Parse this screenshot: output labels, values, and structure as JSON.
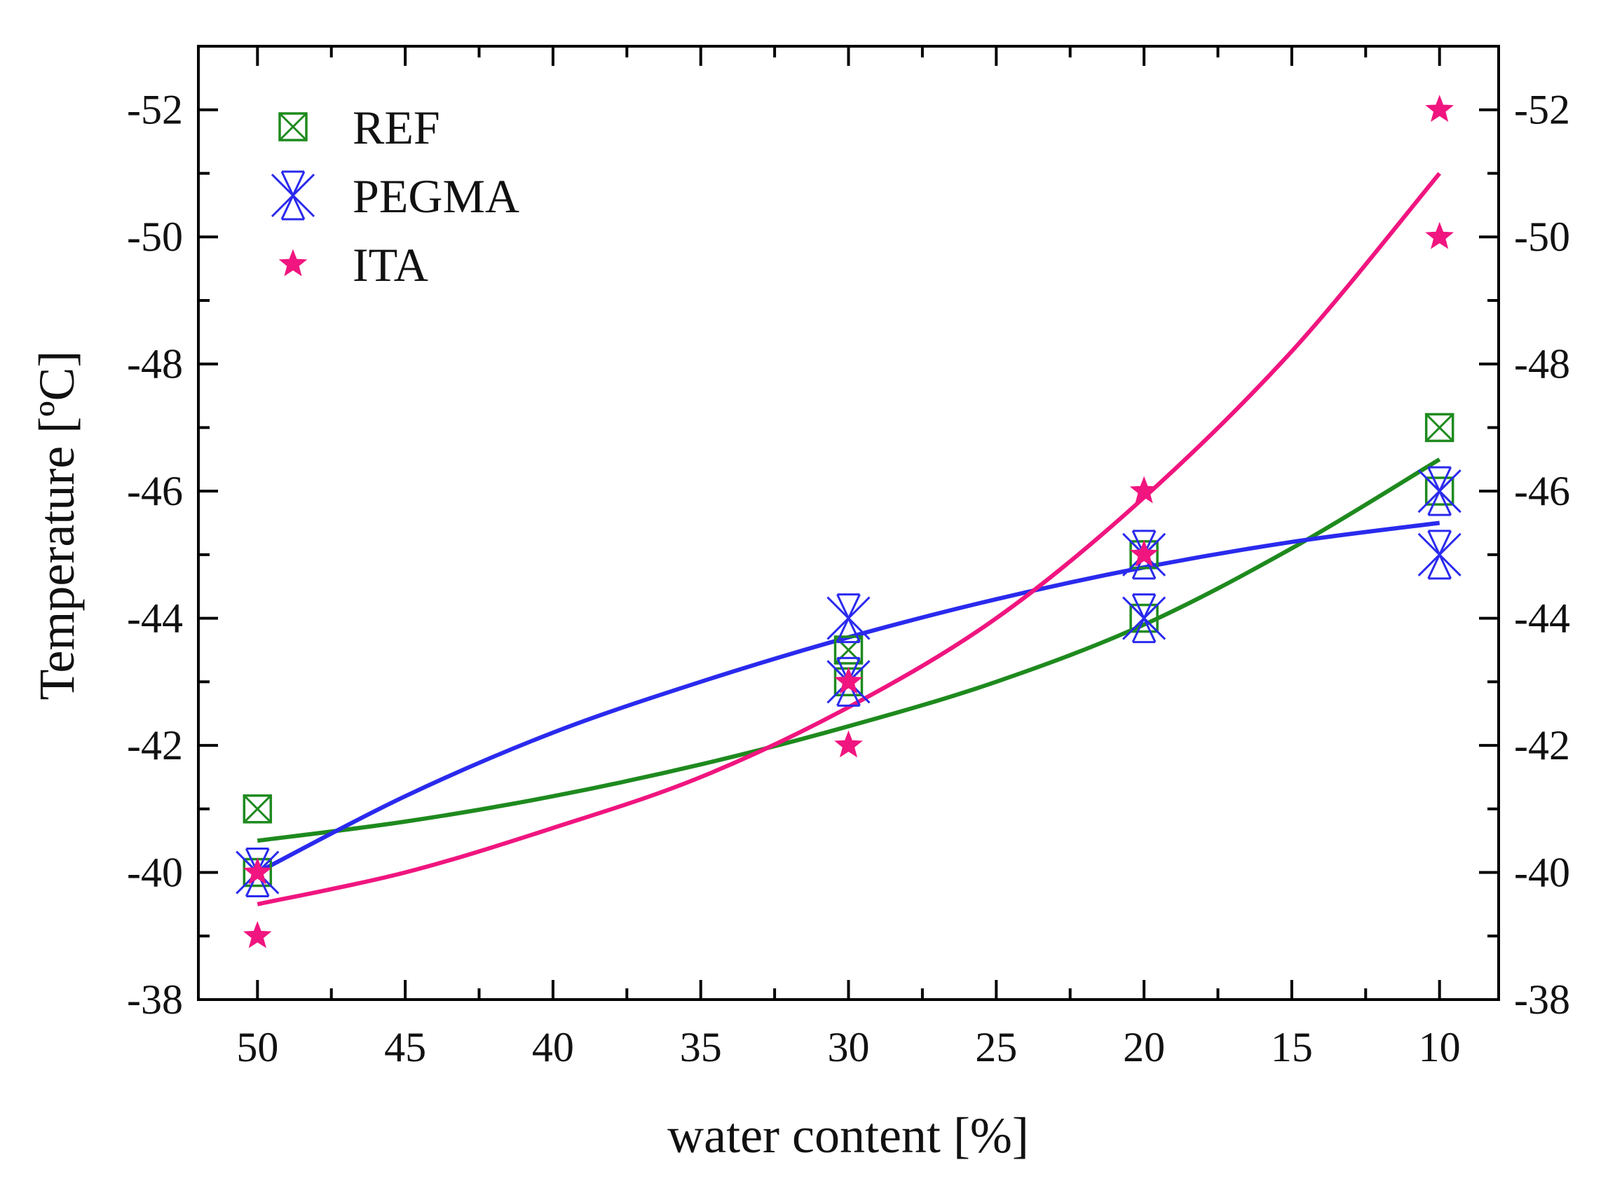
{
  "chart_data": {
    "type": "scatter",
    "title": "",
    "xlabel": "water content [%]",
    "ylabel": "Temperature [ºC]",
    "xlim": [
      52,
      8
    ],
    "ylim": [
      -38,
      -53
    ],
    "x_ticks": [
      50,
      45,
      40,
      35,
      30,
      25,
      20,
      15,
      10
    ],
    "x_tick_labels": [
      "50",
      "45",
      "40",
      "35",
      "30",
      "25",
      "20",
      "15",
      "10"
    ],
    "y_ticks": [
      -38,
      -40,
      -42,
      -44,
      -46,
      -48,
      -50,
      -52
    ],
    "y_tick_labels": [
      "-38",
      "-40",
      "-42",
      "-44",
      "-46",
      "-48",
      "-50",
      "-52"
    ],
    "right_axis_mirrored": true,
    "legend_position": "top-left",
    "series": [
      {
        "name": "REF",
        "color": "#1e8a1e",
        "marker": "square-x-icon",
        "points": [
          {
            "x": 50,
            "y": -41
          },
          {
            "x": 50,
            "y": -40
          },
          {
            "x": 30,
            "y": -43.5
          },
          {
            "x": 30,
            "y": -43
          },
          {
            "x": 20,
            "y": -45
          },
          {
            "x": 20,
            "y": -44
          },
          {
            "x": 10,
            "y": -47
          },
          {
            "x": 10,
            "y": -46
          }
        ],
        "fit": [
          {
            "x": 50,
            "y": -40.5
          },
          {
            "x": 45,
            "y": -40.8
          },
          {
            "x": 40,
            "y": -41.2
          },
          {
            "x": 35,
            "y": -41.7
          },
          {
            "x": 30,
            "y": -42.3
          },
          {
            "x": 25,
            "y": -43.0
          },
          {
            "x": 20,
            "y": -43.9
          },
          {
            "x": 15,
            "y": -45.1
          },
          {
            "x": 10,
            "y": -46.5
          }
        ]
      },
      {
        "name": "PEGMA",
        "color": "#2a2aee",
        "marker": "asterisk-x-icon",
        "points": [
          {
            "x": 50,
            "y": -40
          },
          {
            "x": 30,
            "y": -44
          },
          {
            "x": 30,
            "y": -43
          },
          {
            "x": 20,
            "y": -45
          },
          {
            "x": 20,
            "y": -44
          },
          {
            "x": 10,
            "y": -46
          },
          {
            "x": 10,
            "y": -45
          }
        ],
        "fit": [
          {
            "x": 50,
            "y": -40.0
          },
          {
            "x": 45,
            "y": -41.2
          },
          {
            "x": 40,
            "y": -42.2
          },
          {
            "x": 35,
            "y": -43.0
          },
          {
            "x": 30,
            "y": -43.7
          },
          {
            "x": 25,
            "y": -44.3
          },
          {
            "x": 20,
            "y": -44.8
          },
          {
            "x": 15,
            "y": -45.2
          },
          {
            "x": 10,
            "y": -45.5
          }
        ]
      },
      {
        "name": "ITA",
        "color": "#f0157f",
        "marker": "star-icon",
        "points": [
          {
            "x": 50,
            "y": -40
          },
          {
            "x": 50,
            "y": -39
          },
          {
            "x": 30,
            "y": -43
          },
          {
            "x": 30,
            "y": -42
          },
          {
            "x": 20,
            "y": -46
          },
          {
            "x": 20,
            "y": -45
          },
          {
            "x": 10,
            "y": -52
          },
          {
            "x": 10,
            "y": -50
          }
        ],
        "fit": [
          {
            "x": 50,
            "y": -39.5
          },
          {
            "x": 45,
            "y": -40.0
          },
          {
            "x": 40,
            "y": -40.7
          },
          {
            "x": 35,
            "y": -41.5
          },
          {
            "x": 30,
            "y": -42.6
          },
          {
            "x": 25,
            "y": -44.0
          },
          {
            "x": 20,
            "y": -45.9
          },
          {
            "x": 15,
            "y": -48.2
          },
          {
            "x": 10,
            "y": -51.0
          }
        ]
      }
    ]
  }
}
